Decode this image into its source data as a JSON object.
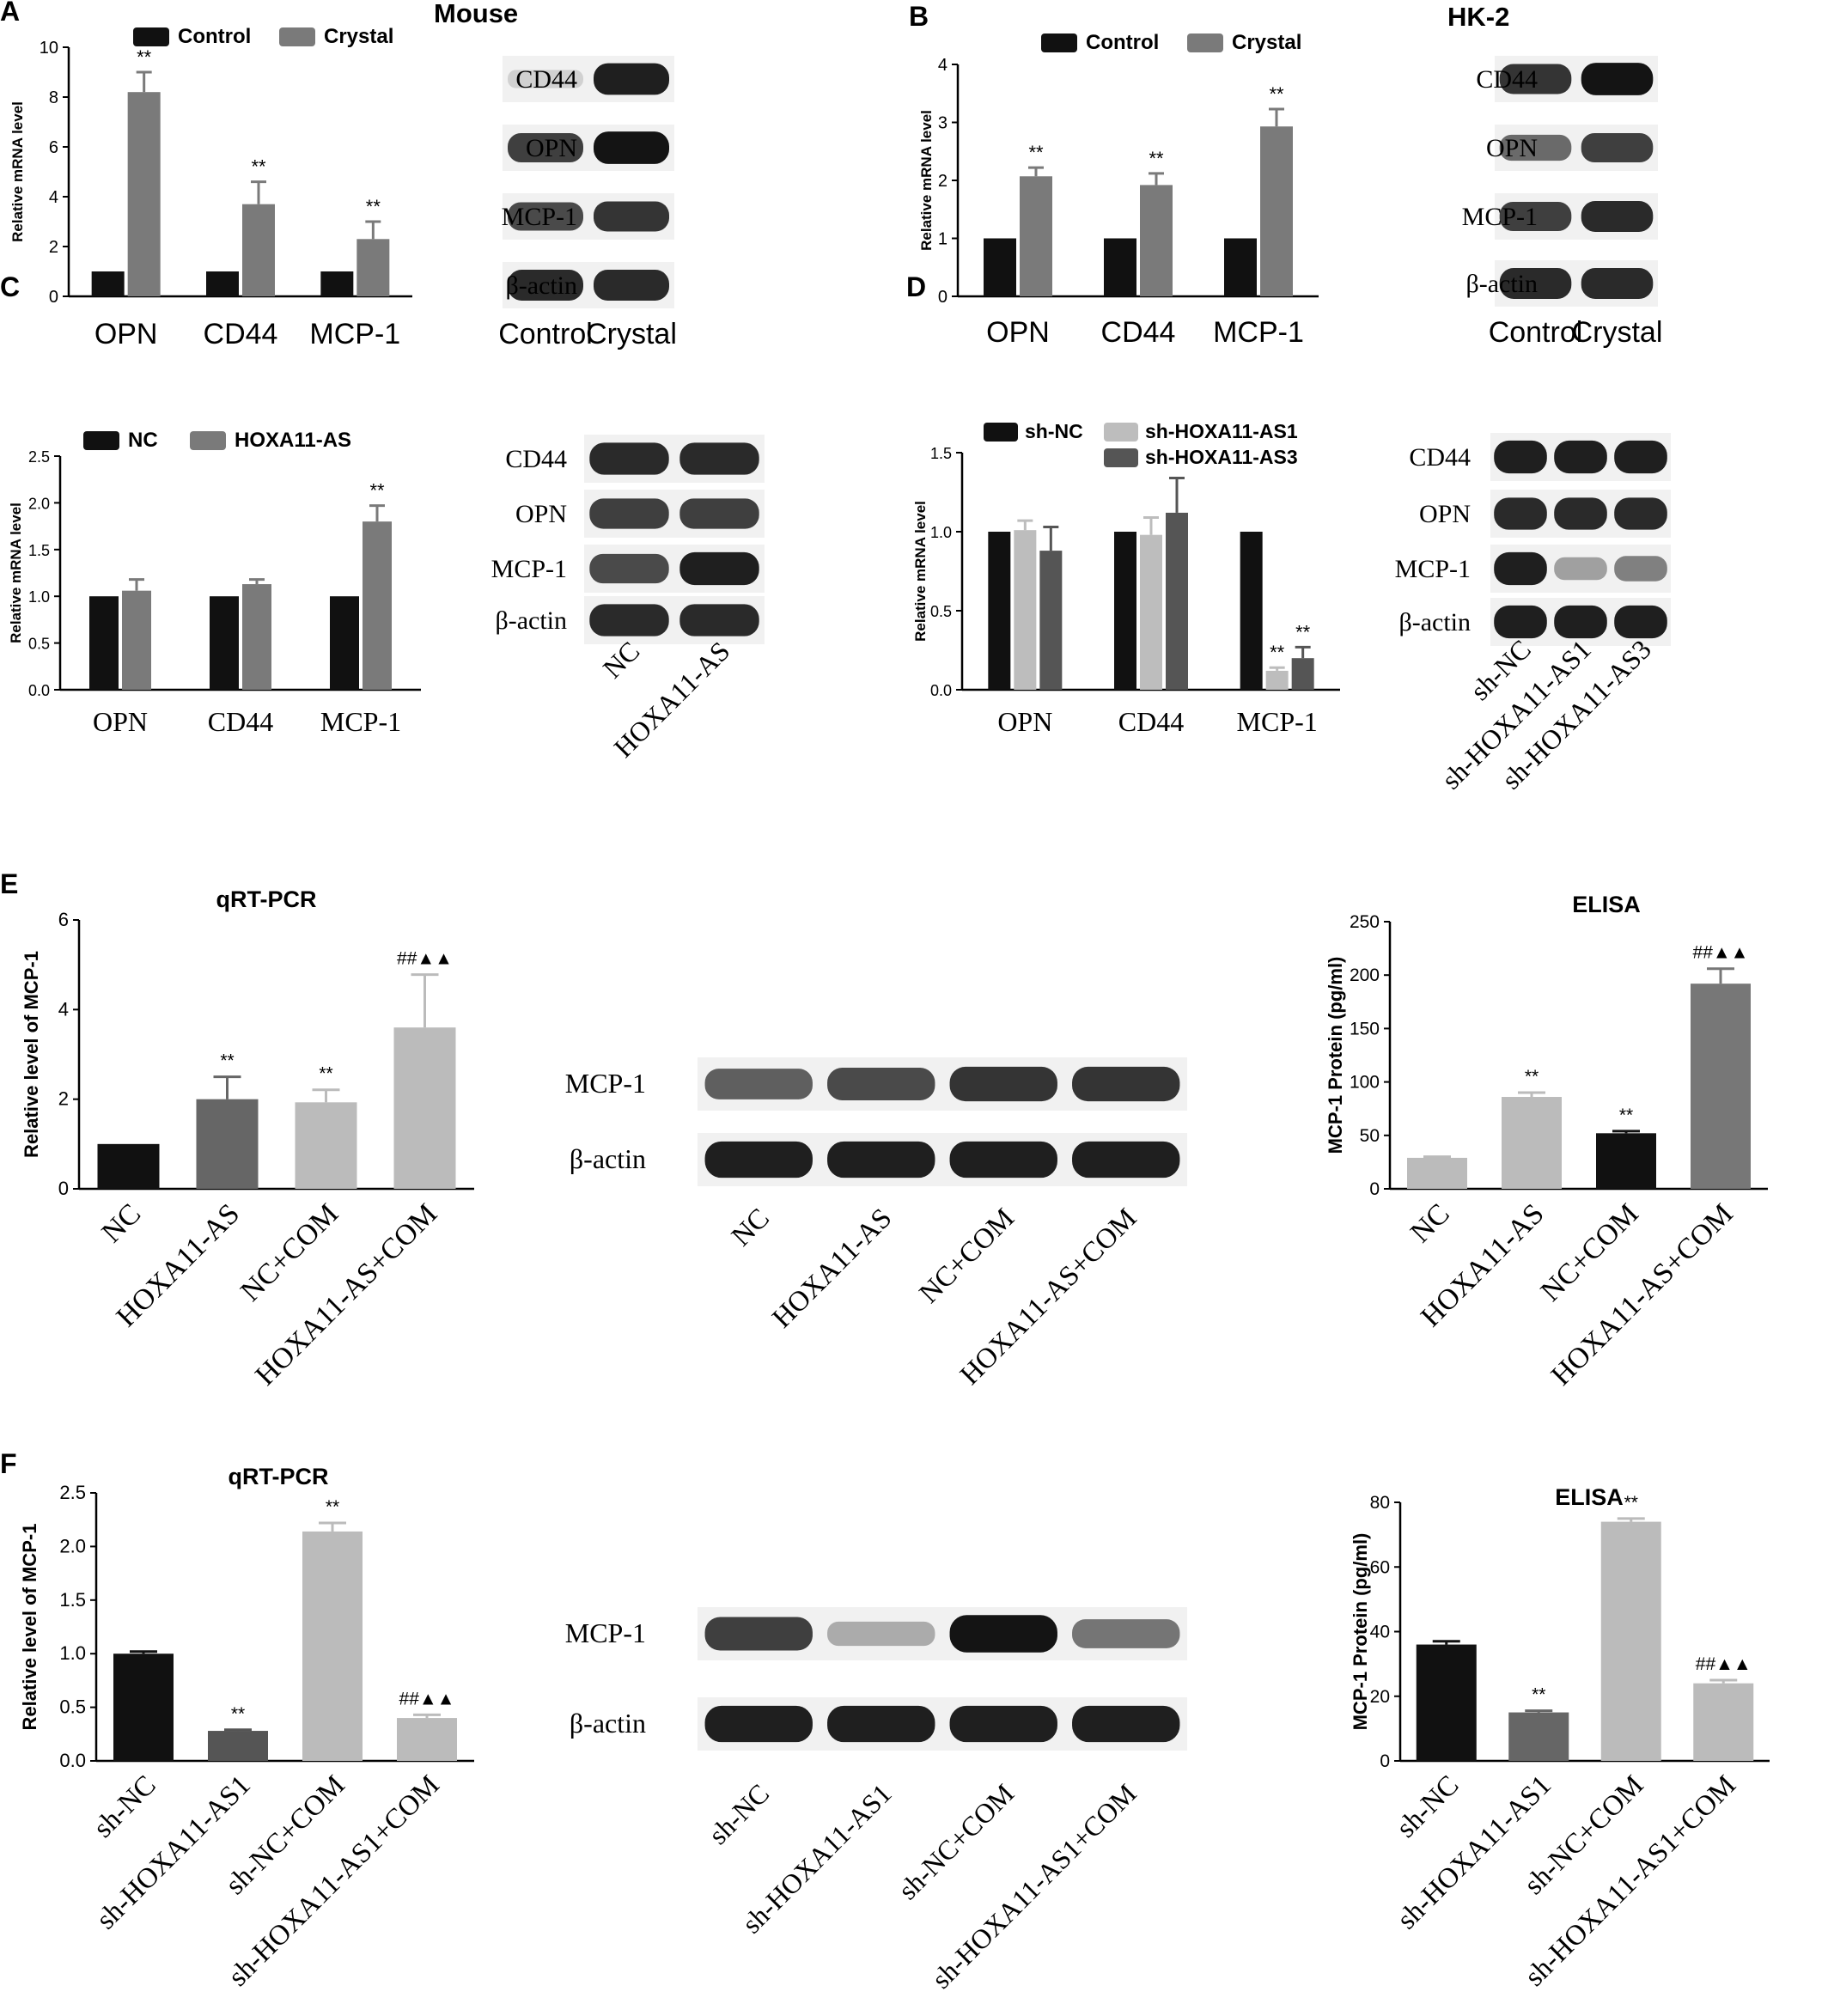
{
  "panel_letters": {
    "A": "A",
    "B": "B",
    "C": "C",
    "D": "D",
    "E": "E",
    "F": "F"
  },
  "headers": {
    "mouse": "Mouse",
    "hk2": "HK-2"
  },
  "colors": {
    "black": "#111111",
    "gray": "#7a7a7a",
    "light": "#bdbdbd",
    "dark": "#555555",
    "mid": "#888888",
    "bar_light": "#b9b9b9"
  },
  "chart_data": [
    {
      "id": "A",
      "type": "bar",
      "categories": [
        "OPN",
        "CD44",
        "MCP-1"
      ],
      "ylabel": "Relative mRNA level",
      "ylim": [
        0,
        10
      ],
      "yticks": [
        0,
        2,
        4,
        6,
        8,
        10
      ],
      "series": [
        {
          "name": "Control",
          "values": [
            1.0,
            1.0,
            1.0
          ],
          "errors": [
            0,
            0,
            0
          ],
          "color": "#111111"
        },
        {
          "name": "Crystal",
          "values": [
            8.2,
            3.7,
            2.3
          ],
          "errors": [
            0.8,
            0.9,
            0.7
          ],
          "color": "#7a7a7a"
        }
      ],
      "annotations": [
        {
          "category": 0,
          "series": 1,
          "text": "**"
        },
        {
          "category": 1,
          "series": 1,
          "text": "**"
        },
        {
          "category": 2,
          "series": 1,
          "text": "**"
        }
      ]
    },
    {
      "id": "B",
      "type": "bar",
      "categories": [
        "OPN",
        "CD44",
        "MCP-1"
      ],
      "ylabel": "Relative mRNA level",
      "ylim": [
        0,
        4
      ],
      "yticks": [
        0,
        1,
        2,
        3,
        4
      ],
      "series": [
        {
          "name": "Control",
          "values": [
            1.0,
            1.0,
            1.0
          ],
          "errors": [
            0,
            0,
            0
          ],
          "color": "#111111"
        },
        {
          "name": "Crystal",
          "values": [
            2.07,
            1.92,
            2.93
          ],
          "errors": [
            0.15,
            0.2,
            0.3
          ],
          "color": "#7a7a7a"
        }
      ],
      "annotations": [
        {
          "category": 0,
          "series": 1,
          "text": "**"
        },
        {
          "category": 1,
          "series": 1,
          "text": "**"
        },
        {
          "category": 2,
          "series": 1,
          "text": "**"
        }
      ]
    },
    {
      "id": "C",
      "type": "bar",
      "categories": [
        "OPN",
        "CD44",
        "MCP-1"
      ],
      "ylabel": "Relative mRNA level",
      "ylim": [
        0,
        2.5
      ],
      "yticks": [
        "0.0",
        "0.5",
        "1.0",
        "1.5",
        "2.0",
        "2.5"
      ],
      "series": [
        {
          "name": "NC",
          "values": [
            1.0,
            1.0,
            1.0
          ],
          "errors": [
            0,
            0,
            0
          ],
          "color": "#111111"
        },
        {
          "name": "HOXA11-AS",
          "values": [
            1.06,
            1.13,
            1.8
          ],
          "errors": [
            0.12,
            0.05,
            0.17
          ],
          "color": "#7a7a7a"
        }
      ],
      "annotations": [
        {
          "category": 2,
          "series": 1,
          "text": "**"
        }
      ]
    },
    {
      "id": "D",
      "type": "bar",
      "categories": [
        "OPN",
        "CD44",
        "MCP-1"
      ],
      "ylabel": "Relative mRNA level",
      "ylim": [
        0,
        1.5
      ],
      "yticks": [
        "0.0",
        "0.5",
        "1.0",
        "1.5"
      ],
      "series": [
        {
          "name": "sh-NC",
          "values": [
            1.0,
            1.0,
            1.0
          ],
          "errors": [
            0,
            0,
            0
          ],
          "color": "#111111"
        },
        {
          "name": "sh-HOXA11-AS1",
          "values": [
            1.01,
            0.98,
            0.12
          ],
          "errors": [
            0.06,
            0.11,
            0.02
          ],
          "color": "#bdbdbd"
        },
        {
          "name": "sh-HOXA11-AS3",
          "values": [
            0.88,
            1.12,
            0.2
          ],
          "errors": [
            0.15,
            0.22,
            0.07
          ],
          "color": "#555555"
        }
      ],
      "annotations": [
        {
          "category": 2,
          "series": 1,
          "text": "**"
        },
        {
          "category": 2,
          "series": 2,
          "text": "**"
        }
      ]
    },
    {
      "id": "E1",
      "type": "bar",
      "title": "qRT-PCR",
      "categories": [
        "NC",
        "HOXA11-AS",
        "NC+COM",
        "HOXA11-AS+COM"
      ],
      "ylabel": "Relative level of MCP-1",
      "ylim": [
        0,
        6
      ],
      "yticks": [
        0,
        2,
        4,
        6
      ],
      "values": [
        1.0,
        2.0,
        1.93,
        3.6
      ],
      "errors": [
        0,
        0.5,
        0.28,
        1.18
      ],
      "colors": [
        "#111111",
        "#666666",
        "#bbbbbb",
        "#bbbbbb"
      ],
      "annotations": [
        "",
        "**",
        "**",
        "##▲▲"
      ]
    },
    {
      "id": "E2",
      "type": "bar",
      "title": "ELISA",
      "categories": [
        "NC",
        "HOXA11-AS",
        "NC+COM",
        "HOXA11-AS+COM"
      ],
      "ylabel": "MCP-1 Protein (pg/ml)",
      "ylim": [
        0,
        250
      ],
      "yticks": [
        0,
        50,
        100,
        150,
        200,
        250
      ],
      "values": [
        29,
        86,
        52,
        192
      ],
      "errors": [
        1,
        4,
        2,
        14
      ],
      "colors": [
        "#bbbbbb",
        "#bbbbbb",
        "#111111",
        "#777777"
      ],
      "annotations": [
        "",
        "**",
        "**",
        "##▲▲"
      ]
    },
    {
      "id": "F1",
      "type": "bar",
      "title": "qRT-PCR",
      "categories": [
        "sh-NC",
        "sh-HOXA11-AS1",
        "sh-NC+COM",
        "sh-HOXA11-AS1+COM"
      ],
      "ylabel": "Relative level of MCP-1",
      "ylim": [
        0,
        2.5
      ],
      "yticks": [
        "0.0",
        "0.5",
        "1.0",
        "1.5",
        "2.0",
        "2.5"
      ],
      "values": [
        1.0,
        0.28,
        2.14,
        0.4
      ],
      "errors": [
        0.02,
        0.01,
        0.08,
        0.03
      ],
      "colors": [
        "#111111",
        "#555555",
        "#bbbbbb",
        "#bbbbbb"
      ],
      "annotations": [
        "",
        "**",
        "**",
        "##▲▲"
      ]
    },
    {
      "id": "F2",
      "type": "bar",
      "title": "ELISA",
      "categories": [
        "sh-NC",
        "sh-HOXA11-AS1",
        "sh-NC+COM",
        "sh-HOXA11-AS1+COM"
      ],
      "ylabel": "MCP-1 Protein (pg/ml)",
      "ylim": [
        0,
        80
      ],
      "yticks": [
        0,
        20,
        40,
        60,
        80
      ],
      "values": [
        36,
        15,
        74,
        24
      ],
      "errors": [
        1,
        0.5,
        1,
        1
      ],
      "colors": [
        "#111111",
        "#666666",
        "#bbbbbb",
        "#bbbbbb"
      ],
      "annotations": [
        "",
        "**",
        "**",
        "##▲▲"
      ]
    }
  ],
  "blots": [
    {
      "id": "blotA",
      "bands": [
        {
          "label": "CD44",
          "levels": [
            0.12,
            0.95
          ]
        },
        {
          "label": "OPN",
          "levels": [
            0.8,
            1.0
          ]
        },
        {
          "label": "MCP-1",
          "levels": [
            0.75,
            0.85
          ]
        },
        {
          "label": "β-actin",
          "levels": [
            0.9,
            0.9
          ]
        }
      ],
      "lanes": [
        "Control",
        "Crystal"
      ]
    },
    {
      "id": "blotB",
      "bands": [
        {
          "label": "CD44",
          "levels": [
            0.85,
            1.0
          ]
        },
        {
          "label": "OPN",
          "levels": [
            0.6,
            0.8
          ]
        },
        {
          "label": "MCP-1",
          "levels": [
            0.8,
            0.9
          ]
        },
        {
          "label": "β-actin",
          "levels": [
            0.9,
            0.9
          ]
        }
      ],
      "lanes": [
        "Control",
        "Crystal"
      ]
    },
    {
      "id": "blotC",
      "bands": [
        {
          "label": "CD44",
          "levels": [
            0.9,
            0.9
          ]
        },
        {
          "label": "OPN",
          "levels": [
            0.8,
            0.8
          ]
        },
        {
          "label": "MCP-1",
          "levels": [
            0.75,
            0.95
          ]
        },
        {
          "label": "β-actin",
          "levels": [
            0.9,
            0.9
          ]
        }
      ],
      "lanes": [
        "NC",
        "HOXA11-AS"
      ]
    },
    {
      "id": "blotD",
      "bands": [
        {
          "label": "CD44",
          "levels": [
            0.95,
            0.95,
            0.95
          ]
        },
        {
          "label": "OPN",
          "levels": [
            0.9,
            0.9,
            0.9
          ]
        },
        {
          "label": "MCP-1",
          "levels": [
            0.95,
            0.35,
            0.5
          ]
        },
        {
          "label": "β-actin",
          "levels": [
            0.95,
            0.95,
            0.95
          ]
        }
      ],
      "lanes": [
        "sh-NC",
        "sh-HOXA11-AS1",
        "sh-HOXA11-AS3"
      ]
    },
    {
      "id": "blotE",
      "bands": [
        {
          "label": "MCP-1",
          "levels": [
            0.65,
            0.75,
            0.85,
            0.85
          ]
        },
        {
          "label": "β-actin",
          "levels": [
            0.95,
            0.95,
            0.95,
            0.95
          ]
        }
      ],
      "lanes": [
        "NC",
        "HOXA11-AS",
        "NC+COM",
        "HOXA11-AS+COM"
      ]
    },
    {
      "id": "blotF",
      "bands": [
        {
          "label": "MCP-1",
          "levels": [
            0.8,
            0.3,
            1.0,
            0.55
          ]
        },
        {
          "label": "β-actin",
          "levels": [
            0.95,
            0.95,
            0.95,
            0.95
          ]
        }
      ],
      "lanes": [
        "sh-NC",
        "sh-HOXA11-AS1",
        "sh-NC+COM",
        "sh-HOXA11-AS1+COM"
      ]
    }
  ]
}
